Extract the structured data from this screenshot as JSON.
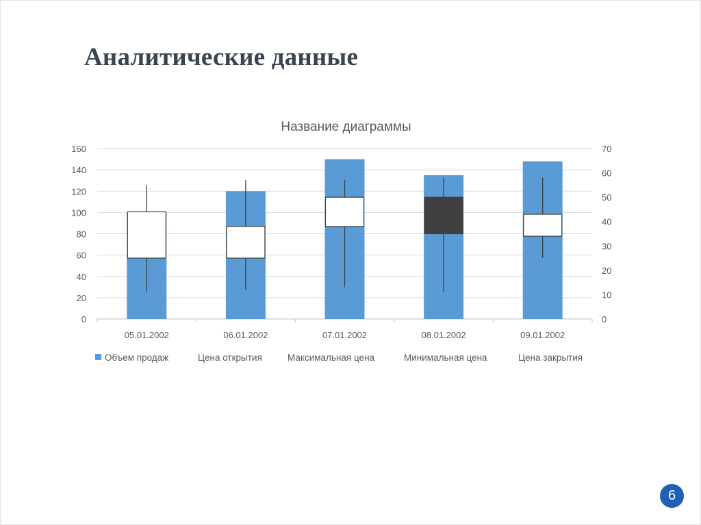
{
  "slide": {
    "title": "Аналитические данные",
    "page_number": "6"
  },
  "chart_data": {
    "type": "stock",
    "title": "Название диаграммы",
    "categories": [
      "05.01.2002",
      "06.01.2002",
      "07.01.2002",
      "08.01.2002",
      "09.01.2002"
    ],
    "y_left": {
      "min": 0,
      "max": 160,
      "ticks": [
        0,
        20,
        40,
        60,
        80,
        100,
        120,
        140,
        160
      ]
    },
    "y_right": {
      "min": 0,
      "max": 70,
      "ticks": [
        0,
        10,
        20,
        30,
        40,
        50,
        60,
        70
      ]
    },
    "series": [
      {
        "name": "Объем продаж",
        "axis": "left",
        "values": [
          100,
          120,
          150,
          135,
          148
        ]
      },
      {
        "name": "Цена открытия",
        "axis": "right",
        "values": [
          25,
          25,
          38,
          50,
          34
        ]
      },
      {
        "name": "Максимальная цена",
        "axis": "right",
        "values": [
          55,
          57,
          57,
          58,
          58
        ]
      },
      {
        "name": "Минимальная цена",
        "axis": "right",
        "values": [
          11,
          12,
          13,
          11,
          25
        ]
      },
      {
        "name": "Цена закрытия",
        "axis": "right",
        "values": [
          44,
          38,
          50,
          35,
          43
        ]
      }
    ],
    "grid": true,
    "legend_position": "bottom",
    "colors": {
      "volume": "#5b9bd5",
      "up_box": "#ffffff",
      "down_box": "#404040",
      "wick": "#404040",
      "grid": "#d9d9d9",
      "text": "#595959",
      "title": "#595959"
    }
  }
}
